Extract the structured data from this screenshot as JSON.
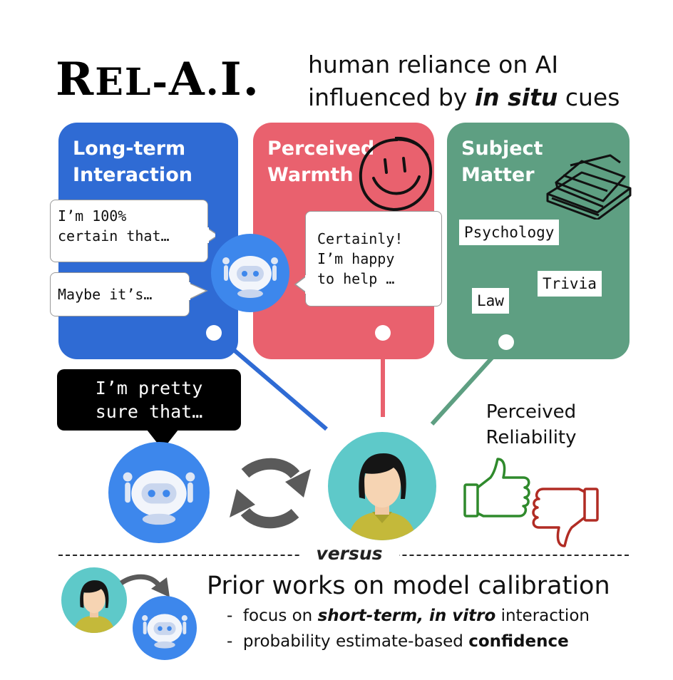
{
  "title": {
    "name_first": "R",
    "name_rest": "EL-",
    "name_a": "A",
    "name_dot1": ".",
    "name_i": "I",
    "name_dot2": ".",
    "subtitle_line1": "human reliance on AI",
    "subtitle_line2_pre": "influenced by ",
    "subtitle_line2_em": "in situ",
    "subtitle_line2_post": " cues"
  },
  "panels": {
    "long_term": {
      "title_line1": "Long-term",
      "title_line2": "Interaction",
      "bubble1_line1": "I’m 100%",
      "bubble1_line2": "certain that…",
      "bubble2": "Maybe it’s…",
      "color": "#2f6bd4"
    },
    "warmth": {
      "title_line1": "Perceived",
      "title_line2": "Warmth",
      "bubble_line1": "Certainly!",
      "bubble_line2": "I’m happy",
      "bubble_line3": "to help …",
      "color": "#e9616e"
    },
    "subject": {
      "title_line1": "Subject",
      "title_line2": "Matter",
      "tags": [
        "Psychology",
        "Trivia",
        "Law"
      ],
      "color": "#5e9f82"
    }
  },
  "interaction": {
    "ai_line1": "I’m pretty",
    "ai_line2": "sure that…",
    "reliability_line1": "Perceived",
    "reliability_line2": "Reliability"
  },
  "versus": "versus",
  "prior": {
    "title": "Prior works on model calibration",
    "item1_pre": "focus on ",
    "item1_em": "short-term, in vitro",
    "item1_post": " interaction",
    "item2_pre": "probability estimate-based ",
    "item2_bold": "confidence"
  },
  "icons": [
    "robot-icon",
    "person-avatar-icon",
    "smiley-icon",
    "books-icon",
    "cycle-arrows-icon",
    "thumbs-up-icon",
    "thumbs-down-icon",
    "arrow-icon"
  ]
}
